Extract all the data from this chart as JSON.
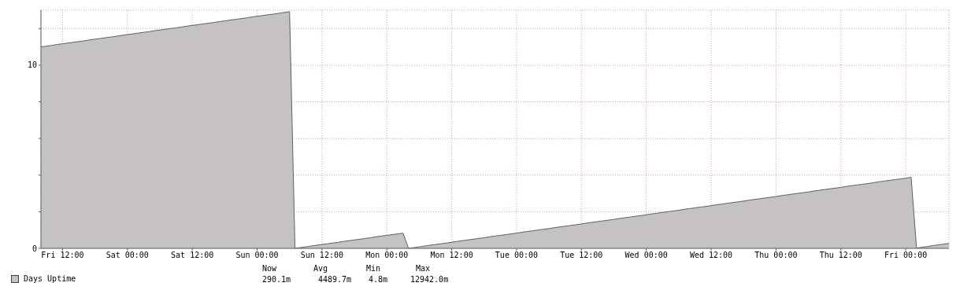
{
  "chart_data": {
    "type": "area",
    "categories": [
      null,
      null,
      null,
      null,
      "Fri 12:00",
      null,
      null,
      null,
      null,
      null,
      null,
      null,
      null,
      null,
      null,
      null,
      "Sat 00:00",
      null,
      null,
      null,
      null,
      null,
      null,
      null,
      null,
      null,
      null,
      null,
      "Sat 12:00",
      null,
      null,
      null,
      null,
      null,
      null,
      null,
      null,
      null,
      null,
      null,
      "Sun 00:00",
      null,
      null,
      null,
      null,
      null,
      null,
      null,
      null,
      null,
      null,
      null,
      "Sun 12:00",
      null,
      null,
      null,
      null,
      null,
      null,
      null,
      null,
      null,
      null,
      null,
      "Mon 00:00",
      null,
      null,
      null,
      null,
      null,
      null,
      null,
      null,
      null,
      null,
      null,
      "Mon 12:00",
      null,
      null,
      null,
      null,
      null,
      null,
      null,
      null,
      null,
      null,
      null,
      "Tue 00:00",
      null,
      null,
      null,
      null,
      null,
      null,
      null,
      null,
      null,
      null,
      null,
      "Tue 12:00",
      null,
      null,
      null,
      null,
      null,
      null,
      null,
      null,
      null,
      null,
      null,
      "Wed 00:00",
      null,
      null,
      null,
      null,
      null,
      null,
      null,
      null,
      null,
      null,
      null,
      "Wed 12:00",
      null,
      null,
      null,
      null,
      null,
      null,
      null,
      null,
      null,
      null,
      null,
      "Thu 00:00",
      null,
      null,
      null,
      null,
      null,
      null,
      null,
      null,
      null,
      null,
      null,
      "Thu 12:00",
      null,
      null,
      null,
      null,
      null,
      null,
      null,
      null,
      null,
      null,
      null,
      "Fri 00:00",
      null,
      null,
      null,
      null,
      null,
      null,
      null,
      null
    ],
    "series": [
      {
        "name": "Days Uptime",
        "color": "#c4c2c2",
        "values": [
          11.0,
          11.04,
          11.08,
          11.13,
          11.17,
          11.21,
          11.25,
          11.29,
          11.33,
          11.38,
          11.42,
          11.46,
          11.5,
          11.54,
          11.58,
          11.63,
          11.67,
          11.71,
          11.75,
          11.79,
          11.83,
          11.88,
          11.92,
          11.96,
          12.0,
          12.04,
          12.08,
          12.13,
          12.17,
          12.21,
          12.25,
          12.29,
          12.33,
          12.38,
          12.42,
          12.46,
          12.5,
          12.54,
          12.58,
          12.63,
          12.67,
          12.71,
          12.75,
          12.79,
          12.83,
          12.88,
          12.92,
          0.0,
          0.04,
          0.08,
          0.13,
          0.17,
          0.21,
          0.25,
          0.29,
          0.33,
          0.38,
          0.42,
          0.46,
          0.5,
          0.54,
          0.58,
          0.63,
          0.67,
          0.71,
          0.75,
          0.79,
          0.83,
          0.0,
          0.04,
          0.08,
          0.13,
          0.17,
          0.21,
          0.25,
          0.29,
          0.33,
          0.38,
          0.42,
          0.46,
          0.5,
          0.54,
          0.58,
          0.63,
          0.67,
          0.71,
          0.75,
          0.79,
          0.83,
          0.88,
          0.92,
          0.96,
          1.0,
          1.04,
          1.08,
          1.13,
          1.17,
          1.21,
          1.25,
          1.29,
          1.33,
          1.38,
          1.42,
          1.46,
          1.5,
          1.54,
          1.58,
          1.63,
          1.67,
          1.71,
          1.75,
          1.79,
          1.83,
          1.88,
          1.92,
          1.96,
          2.0,
          2.04,
          2.08,
          2.13,
          2.17,
          2.21,
          2.25,
          2.29,
          2.33,
          2.38,
          2.42,
          2.46,
          2.5,
          2.54,
          2.58,
          2.63,
          2.67,
          2.71,
          2.75,
          2.79,
          2.83,
          2.88,
          2.92,
          2.96,
          3.0,
          3.04,
          3.08,
          3.13,
          3.17,
          3.21,
          3.25,
          3.29,
          3.33,
          3.38,
          3.42,
          3.46,
          3.5,
          3.54,
          3.58,
          3.63,
          3.67,
          3.71,
          3.75,
          3.79,
          3.83,
          3.88,
          0.02,
          0.06,
          0.1,
          0.15,
          0.19,
          0.23,
          0.27
        ]
      }
    ],
    "ylim": [
      0,
      13
    ],
    "yticks": [
      0,
      {
        "value": 2,
        "label": null
      },
      {
        "value": 4,
        "label": null
      },
      {
        "value": 6,
        "label": null
      },
      {
        "value": 8,
        "label": null
      },
      10,
      {
        "value": 12,
        "label": null
      }
    ],
    "grid": true,
    "legend": "bottom left",
    "annotations": [
      "Now",
      "Avg",
      "Min",
      "Max",
      "290.1m",
      "4489.7m",
      "4.8m",
      "12942.0m"
    ]
  }
}
